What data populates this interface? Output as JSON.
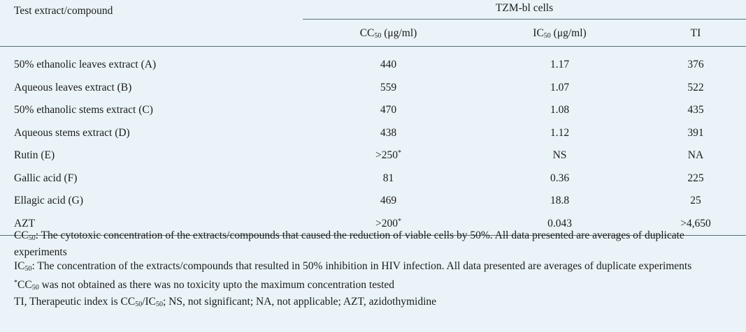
{
  "header": {
    "col0": "Test extract/compound",
    "group": "TZM-bl cells",
    "cc_base": "CC",
    "cc_sub": "50",
    "cc_unit": " (μg/ml)",
    "ic_base": "IC",
    "ic_sub": "50",
    "ic_unit": " (μg/ml)",
    "ti": "TI"
  },
  "rows": [
    {
      "name": "50% ethanolic leaves extract (A)",
      "cc": "440",
      "cc_mark": "",
      "ic": "1.17",
      "ti": "376"
    },
    {
      "name": "Aqueous leaves extract (B)",
      "cc": "559",
      "cc_mark": "",
      "ic": "1.07",
      "ti": "522"
    },
    {
      "name": "50% ethanolic stems extract (C)",
      "cc": "470",
      "cc_mark": "",
      "ic": "1.08",
      "ti": "435"
    },
    {
      "name": "Aqueous stems extract (D)",
      "cc": "438",
      "cc_mark": "",
      "ic": "1.12",
      "ti": "391"
    },
    {
      "name": "Rutin (E)",
      "cc": ">250",
      "cc_mark": "*",
      "ic": "NS",
      "ti": "NA"
    },
    {
      "name": "Gallic acid (F)",
      "cc": "81",
      "cc_mark": "",
      "ic": "0.36",
      "ti": "225"
    },
    {
      "name": "Ellagic acid (G)",
      "cc": "469",
      "cc_mark": "",
      "ic": "18.8",
      "ti": "25"
    },
    {
      "name": "AZT",
      "cc": ">200",
      "cc_mark": "*",
      "ic": "0.043",
      "ti": ">4,650"
    }
  ],
  "notes": {
    "n1_base": "CC",
    "n1_sub": "50",
    "n1_text": ": The cytotoxic concentration of the extracts/compounds that caused the reduction of viable cells by 50%. All data presented are averages of duplicate experiments",
    "n2_base": "IC",
    "n2_sub": "50",
    "n2_text": ": The concentration of the extracts/compounds that resulted in 50% inhibition in HIV infection. All data presented are averages of duplicate experiments",
    "n3_mark": "*",
    "n3_base": "CC",
    "n3_sub": "50",
    "n3_text": " was not obtained as there was no toxicity upto the maximum concentration tested",
    "n4_a": "TI, Therapeutic index is CC",
    "n4_sub1": "50",
    "n4_b": "/IC",
    "n4_sub2": "50",
    "n4_c": "; NS, not significant; NA, not applicable; AZT, azidothymidine"
  }
}
